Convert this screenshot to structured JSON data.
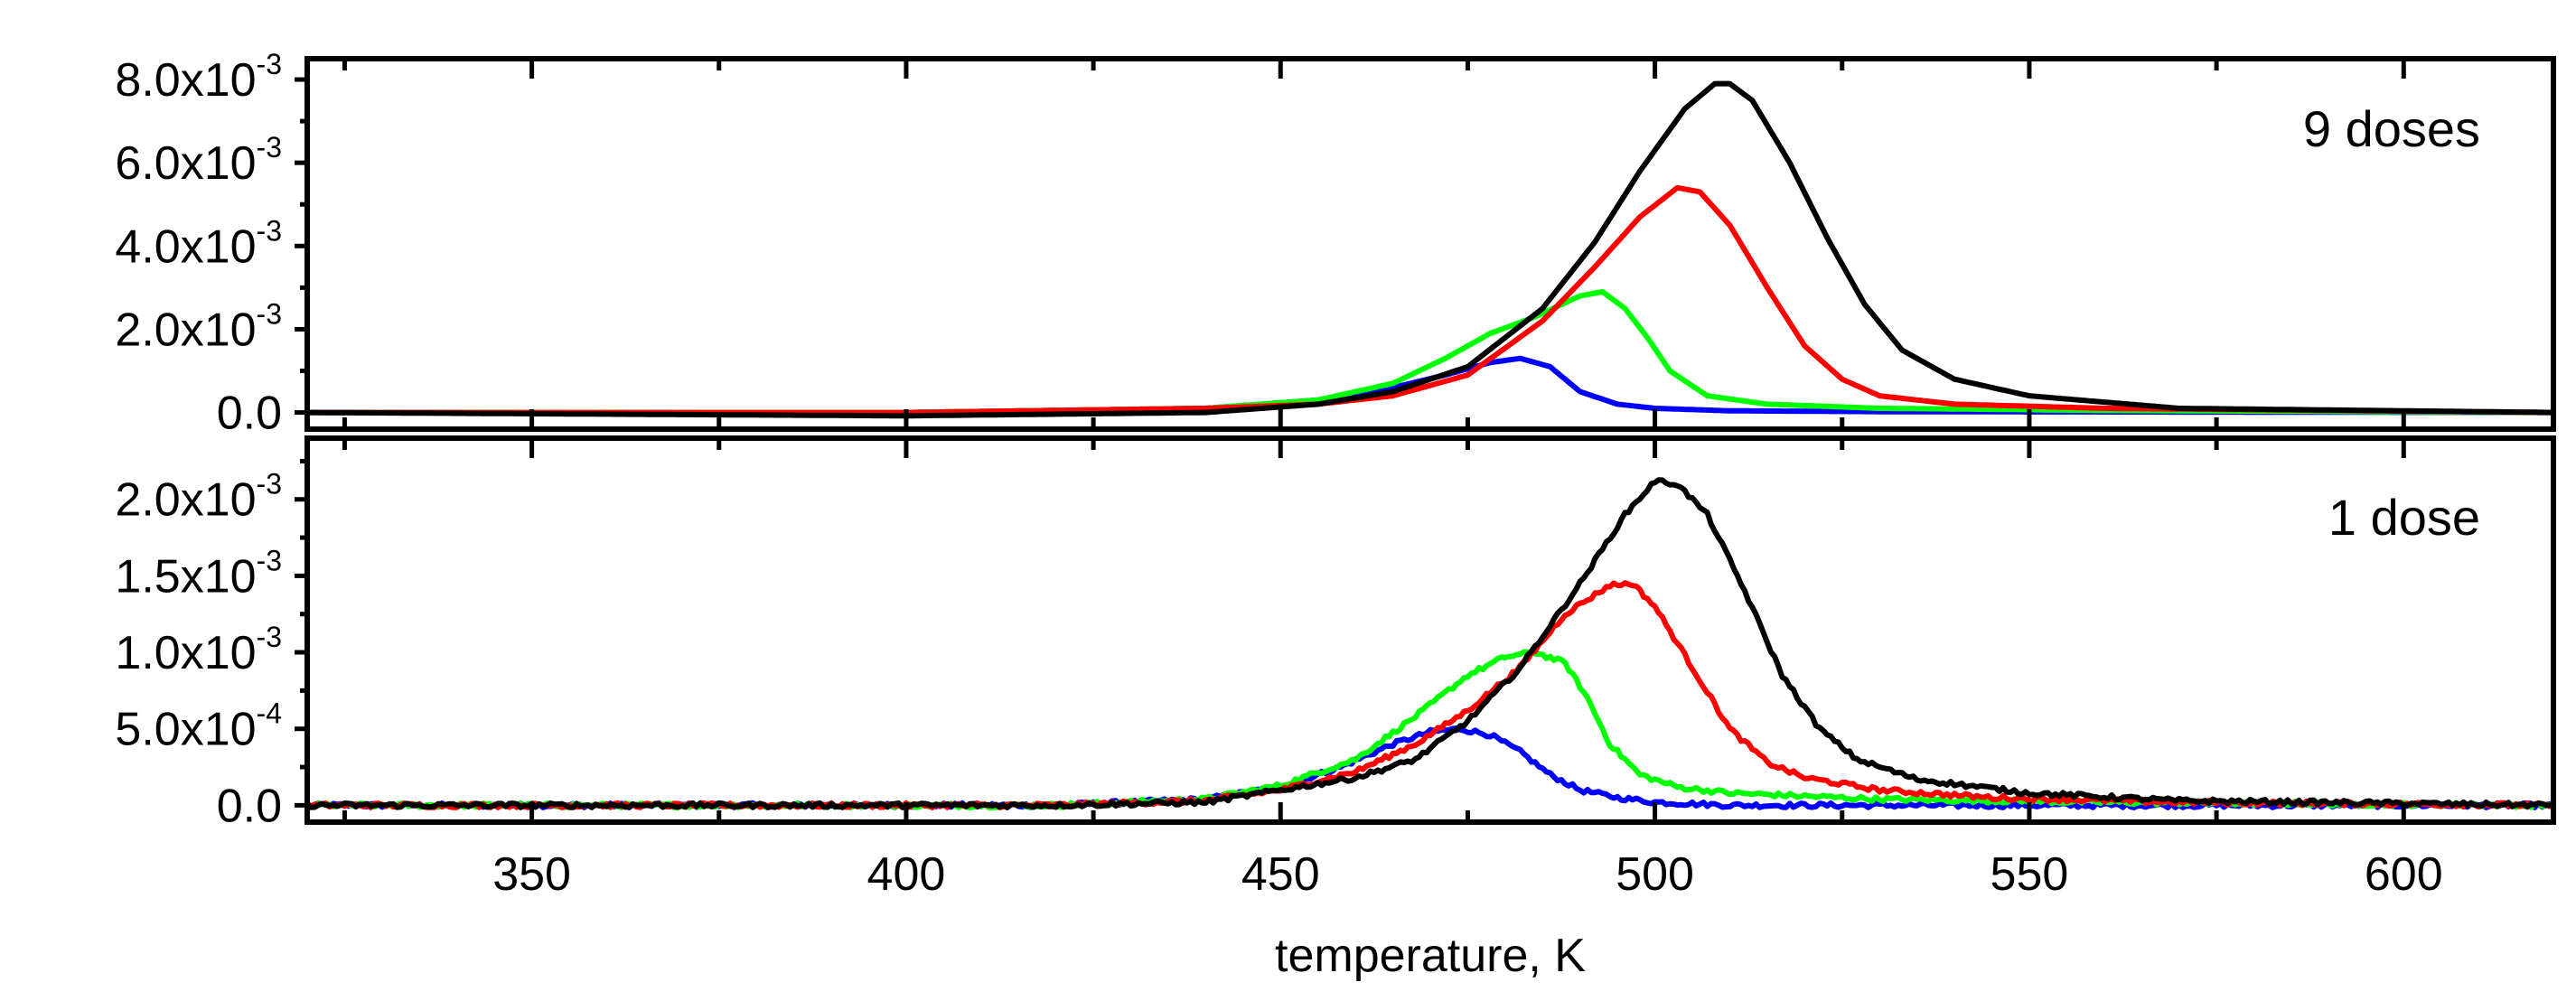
{
  "chart_data": [
    {
      "type": "line",
      "panel": "top",
      "annotation": "9 doses",
      "xlim": [
        320,
        620
      ],
      "ylim": [
        -0.0004,
        0.0085
      ],
      "xlabel": "temperature, K",
      "ylabel": "",
      "grid": false,
      "y_tick_labels": [
        {
          "value": 0,
          "mantissa": "0.0",
          "exponent": ""
        },
        {
          "value": 0.002,
          "mantissa": "2.0x10",
          "exponent": "-3"
        },
        {
          "value": 0.004,
          "mantissa": "4.0x10",
          "exponent": "-3"
        },
        {
          "value": 0.006,
          "mantissa": "6.0x10",
          "exponent": "-3"
        },
        {
          "value": 0.008,
          "mantissa": "8.0x10",
          "exponent": "-3"
        }
      ],
      "series": [
        {
          "name": "blue",
          "color": "#0000ff",
          "noisy": false,
          "x": [
            320,
            400,
            440,
            455,
            465,
            472,
            478,
            482,
            486,
            490,
            495,
            500,
            510,
            530,
            620
          ],
          "y": [
            0,
            0,
            0.0001,
            0.0003,
            0.0006,
            0.0009,
            0.0012,
            0.0013,
            0.0011,
            0.0005,
            0.0002,
            0.0001,
            4e-05,
            2e-05,
            0
          ]
        },
        {
          "name": "green",
          "color": "#00ff00",
          "noisy": false,
          "x": [
            320,
            400,
            440,
            455,
            465,
            472,
            478,
            484,
            490,
            493,
            496,
            499,
            502,
            507,
            515,
            530,
            560,
            620
          ],
          "y": [
            0,
            0,
            0.0001,
            0.0003,
            0.0007,
            0.0013,
            0.0019,
            0.0023,
            0.0028,
            0.0029,
            0.0025,
            0.0018,
            0.001,
            0.0004,
            0.0002,
            0.0001,
            5e-05,
            0
          ]
        },
        {
          "name": "red",
          "color": "#ff0000",
          "noisy": false,
          "x": [
            320,
            400,
            440,
            455,
            465,
            475,
            485,
            492,
            498,
            503,
            506,
            510,
            515,
            520,
            525,
            530,
            540,
            560,
            620
          ],
          "y": [
            0,
            0,
            0.0001,
            0.0002,
            0.0004,
            0.0009,
            0.0022,
            0.0035,
            0.0047,
            0.0054,
            0.0053,
            0.0045,
            0.003,
            0.0016,
            0.0008,
            0.0004,
            0.0002,
            0.0001,
            0
          ]
        },
        {
          "name": "black",
          "color": "#000000",
          "noisy": false,
          "x": [
            320,
            400,
            440,
            455,
            465,
            475,
            485,
            492,
            498,
            504,
            508,
            510,
            513,
            518,
            523,
            528,
            533,
            540,
            550,
            570,
            620
          ],
          "y": [
            0,
            -8e-05,
            0,
            0.0002,
            0.0005,
            0.0011,
            0.0025,
            0.0041,
            0.0058,
            0.0073,
            0.0079,
            0.0079,
            0.0075,
            0.006,
            0.0042,
            0.0026,
            0.0015,
            0.0008,
            0.0004,
            0.0001,
            0
          ]
        }
      ]
    },
    {
      "type": "line",
      "panel": "bottom",
      "annotation": "1 dose",
      "xlim": [
        320,
        620
      ],
      "ylim": [
        -0.00011,
        0.0024
      ],
      "xlabel": "temperature, K",
      "ylabel": "",
      "grid": false,
      "x_tick_labels": [
        "350",
        "400",
        "450",
        "500",
        "550",
        "600"
      ],
      "x_ticks": [
        350,
        400,
        450,
        500,
        550,
        600
      ],
      "y_tick_labels": [
        {
          "value": 0,
          "mantissa": "0.0",
          "exponent": ""
        },
        {
          "value": 0.0005,
          "mantissa": "5.0x10",
          "exponent": "-4"
        },
        {
          "value": 0.001,
          "mantissa": "1.0x10",
          "exponent": "-3"
        },
        {
          "value": 0.0015,
          "mantissa": "1.5x10",
          "exponent": "-3"
        },
        {
          "value": 0.002,
          "mantissa": "2.0x10",
          "exponent": "-3"
        }
      ],
      "series": [
        {
          "name": "blue",
          "color": "#0000ff",
          "noisy": true,
          "x": [
            320,
            420,
            440,
            450,
            458,
            465,
            470,
            474,
            478,
            482,
            486,
            490,
            495,
            500,
            510,
            540,
            580,
            620
          ],
          "y": [
            0,
            0,
            4e-05,
            0.00012,
            0.00025,
            0.0004,
            0.00048,
            0.0005,
            0.00046,
            0.00035,
            0.0002,
            0.0001,
            5e-05,
            2e-05,
            0,
            0,
            0,
            0
          ]
        },
        {
          "name": "green",
          "color": "#00ff00",
          "noisy": true,
          "x": [
            320,
            420,
            440,
            450,
            460,
            468,
            475,
            480,
            484,
            488,
            491,
            494,
            498,
            503,
            510,
            530,
            560,
            620
          ],
          "y": [
            0,
            0,
            4e-05,
            0.00013,
            0.0003,
            0.00058,
            0.00085,
            0.00097,
            0.001,
            0.00093,
            0.0007,
            0.0004,
            0.0002,
            0.00012,
            8e-05,
            4e-05,
            2e-05,
            0
          ]
        },
        {
          "name": "red",
          "color": "#ff0000",
          "noisy": true,
          "x": [
            320,
            420,
            440,
            450,
            460,
            468,
            475,
            482,
            488,
            494,
            497,
            500,
            505,
            510,
            515,
            520,
            530,
            545,
            570,
            620
          ],
          "y": [
            0,
            0,
            3e-05,
            0.0001,
            0.00022,
            0.0004,
            0.00062,
            0.0009,
            0.00125,
            0.00144,
            0.00145,
            0.0013,
            0.0009,
            0.0005,
            0.00028,
            0.00018,
            0.0001,
            5e-05,
            2e-05,
            0
          ]
        },
        {
          "name": "black",
          "color": "#000000",
          "noisy": true,
          "x": [
            320,
            420,
            440,
            450,
            460,
            468,
            475,
            482,
            490,
            496,
            500,
            503,
            507,
            512,
            517,
            522,
            527,
            535,
            550,
            570,
            620
          ],
          "y": [
            0,
            0,
            2e-05,
            0.0001,
            0.00018,
            0.0003,
            0.00055,
            0.0009,
            0.00145,
            0.0019,
            0.00212,
            0.0021,
            0.0019,
            0.0014,
            0.00085,
            0.0005,
            0.0003,
            0.00017,
            8e-05,
            3e-05,
            0
          ]
        }
      ]
    }
  ]
}
